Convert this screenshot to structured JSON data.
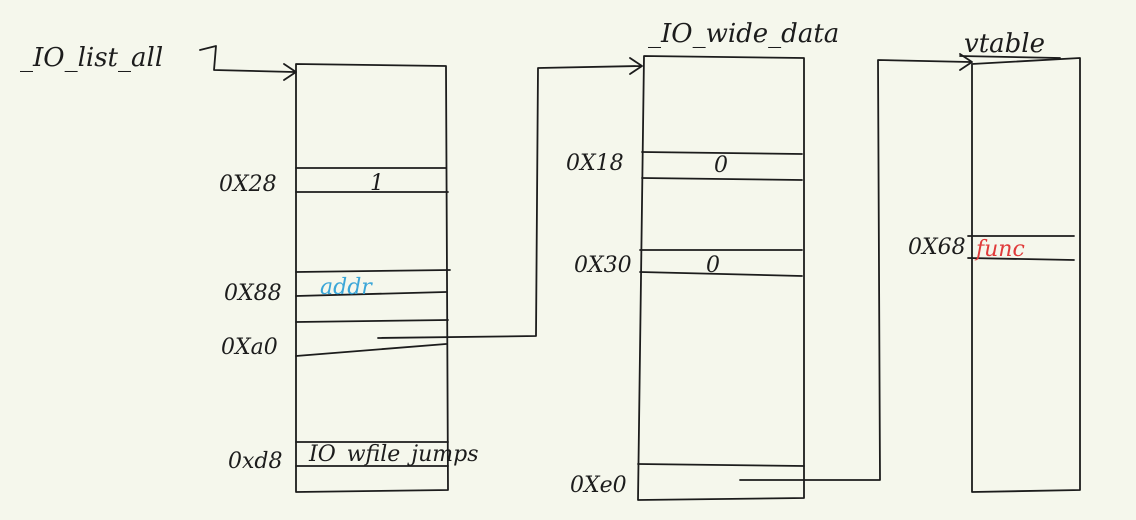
{
  "labels": {
    "io_list_all": "_IO_list_all",
    "io_wide_data": "_IO_wide_data",
    "vtable": "vtable"
  },
  "offsets": {
    "file_0x28": "0X28",
    "file_0x88": "0X88",
    "file_0xa0": "0Xa0",
    "file_0xd8": "0xd8",
    "wide_0x18": "0X18",
    "wide_0x30": "0X30",
    "wide_0xe0": "0Xe0",
    "vtable_0x68": "0X68"
  },
  "values": {
    "file_0x28": "1",
    "file_0x88": "addr",
    "file_0xd8": "_IO_wfile_jumps",
    "wide_0x18": "0",
    "wide_0x30": "0",
    "vtable_0x68": "func"
  },
  "colors": {
    "ink": "#1c1c1c",
    "addr": "#3aa6d8",
    "func": "#e03a3a",
    "background": "#f5f7ec"
  }
}
